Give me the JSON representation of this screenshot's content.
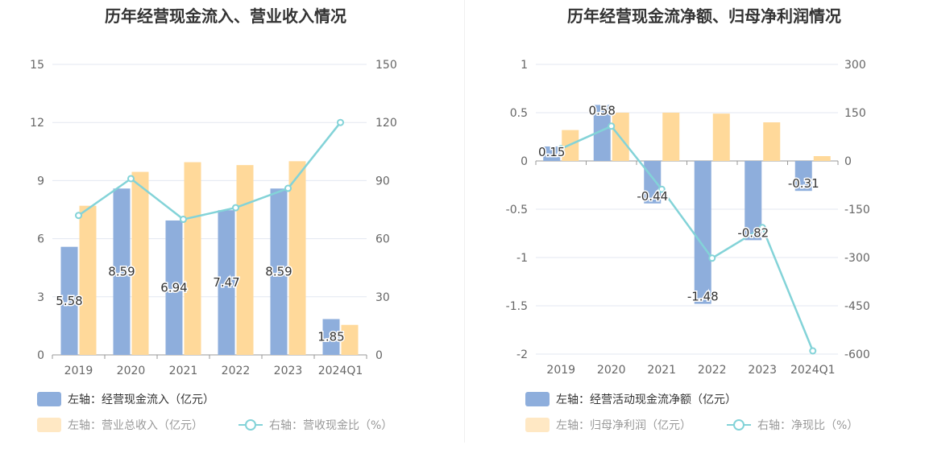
{
  "colors": {
    "bar_blue": "#8eaedc",
    "bar_yellow": "#ffd99a",
    "line": "#83d3d8"
  },
  "chart_data": [
    {
      "type": "bar",
      "title": "历年经营现金流入、营业收入情况",
      "categories": [
        "2019",
        "2020",
        "2021",
        "2022",
        "2023",
        "2024Q1"
      ],
      "y_left": {
        "min": 0,
        "max": 15,
        "ticks": [
          "15",
          "12",
          "9",
          "6",
          "3",
          "0"
        ]
      },
      "y_right": {
        "min": 0,
        "max": 150,
        "ticks": [
          "150",
          "120",
          "90",
          "60",
          "30",
          "0"
        ]
      },
      "series": [
        {
          "name": "左轴：经营现金流入（亿元）",
          "axis": "left",
          "kind": "bar",
          "color": "#8eaedc",
          "values": [
            5.58,
            8.59,
            6.94,
            7.47,
            8.59,
            1.85
          ],
          "labels": [
            "5.58",
            "8.59",
            "6.94",
            "7.47",
            "8.59",
            "1.85"
          ]
        },
        {
          "name": "左轴：营业总收入（亿元）",
          "axis": "left",
          "kind": "bar",
          "color": "#ffd99a",
          "values": [
            7.7,
            9.45,
            9.95,
            9.8,
            10.0,
            1.55
          ]
        },
        {
          "name": "右轴：营收现金比（%）",
          "axis": "right",
          "kind": "line",
          "color": "#83d3d8",
          "values": [
            72,
            91,
            70,
            76,
            86,
            120
          ]
        }
      ],
      "grid": true
    },
    {
      "type": "bar",
      "title": "历年经营现金流净额、归母净利润情况",
      "categories": [
        "2019",
        "2020",
        "2021",
        "2022",
        "2023",
        "2024Q1"
      ],
      "y_left": {
        "min": -2,
        "max": 1,
        "ticks": [
          "1",
          "0.5",
          "0",
          "-0.5",
          "-1",
          "-1.5",
          "-2"
        ]
      },
      "y_right": {
        "min": -600,
        "max": 300,
        "ticks": [
          "300",
          "150",
          "0",
          "-150",
          "-300",
          "-450",
          "-600"
        ]
      },
      "series": [
        {
          "name": "左轴：经营活动现金流净额（亿元）",
          "axis": "left",
          "kind": "bar",
          "color": "#8eaedc",
          "values": [
            0.15,
            0.58,
            -0.44,
            -1.48,
            -0.82,
            -0.31
          ],
          "labels": [
            "0.15",
            "0.58",
            "-0.44",
            "-1.48",
            "-0.82",
            "-0.31"
          ]
        },
        {
          "name": "左轴：归母净利润（亿元）",
          "axis": "left",
          "kind": "bar",
          "color": "#ffd99a",
          "values": [
            0.32,
            0.5,
            0.5,
            0.49,
            0.4,
            0.05
          ]
        },
        {
          "name": "右轴：净现比（%）",
          "axis": "right",
          "kind": "line",
          "color": "#83d3d8",
          "values": [
            38,
            108,
            -88,
            -302,
            -207,
            -590
          ]
        }
      ],
      "grid": true
    }
  ]
}
